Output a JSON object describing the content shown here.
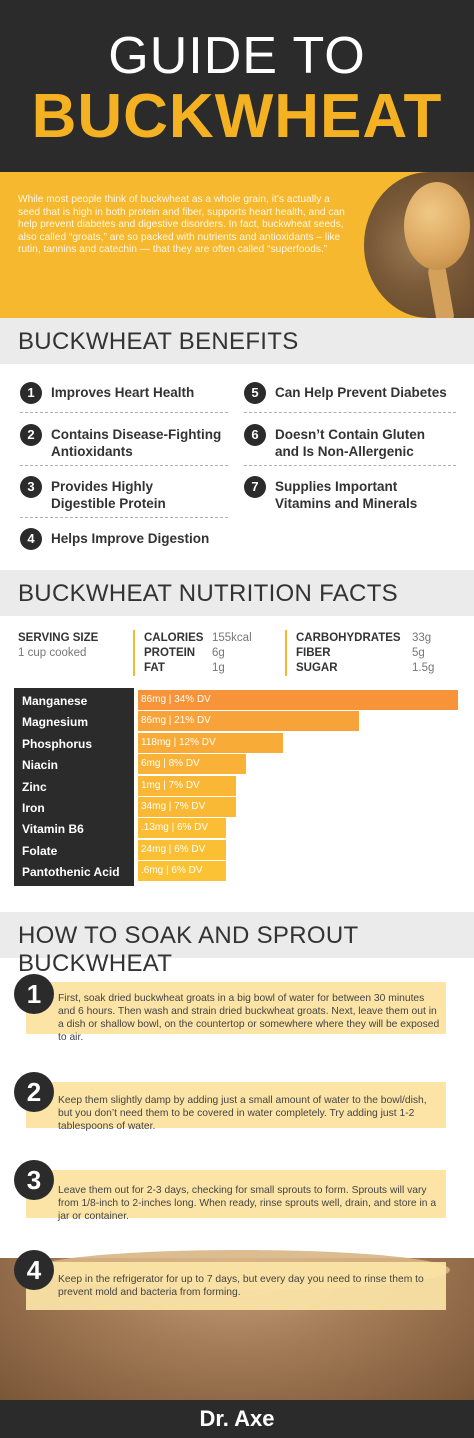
{
  "header": {
    "line1": "GUIDE TO",
    "line2": "BUCKWHEAT"
  },
  "intro": {
    "text": "While most people think of buckwheat as a whole grain, it’s actually a seed that is high in both protein and fiber, supports heart health, and can help prevent diabetes and digestive disorders. In fact, buckwheat seeds, also called “groats,” are so packed with nutrients and antioxidants – like rutin, tannins and catechin — that they are often called “superfoods.”"
  },
  "benefits": {
    "heading": "BUCKWHEAT BENEFITS",
    "items": [
      {
        "num": "1",
        "label": "Improves Heart Health"
      },
      {
        "num": "2",
        "label": "Contains Disease-Fighting Antioxidants"
      },
      {
        "num": "3",
        "label": "Provides Highly Digestible Protein"
      },
      {
        "num": "4",
        "label": "Helps Improve Digestion"
      },
      {
        "num": "5",
        "label": "Can Help Prevent Diabetes"
      },
      {
        "num": "6",
        "label": "Doesn’t Contain Gluten and Is Non-Allergenic"
      },
      {
        "num": "7",
        "label": "Supplies Important Vitamins and Minerals"
      }
    ]
  },
  "nutrition": {
    "heading": "BUCKWHEAT NUTRITION FACTS",
    "serving_label": "SERVING SIZE",
    "serving_value": "1 cup cooked",
    "facts": [
      {
        "label": "CALORIES",
        "value": "155kcal"
      },
      {
        "label": "PROTEIN",
        "value": "6g"
      },
      {
        "label": "FAT",
        "value": "1g"
      },
      {
        "label": "CARBOHYDRATES",
        "value": "33g"
      },
      {
        "label": "FIBER",
        "value": "5g"
      },
      {
        "label": "SUGAR",
        "value": "1.5g"
      }
    ]
  },
  "chart_data": {
    "type": "bar",
    "categories": [
      "Manganese",
      "Magnesium",
      "Phosphorus",
      "Niacin",
      "Zinc",
      "Iron",
      "Vitamin B6",
      "Folate",
      "Pantothenic Acid"
    ],
    "labels": [
      "86mg | 34% DV",
      "86mg | 21% DV",
      "118mg | 12% DV",
      "6mg | 8% DV",
      "1mg | 7% DV",
      "34mg | 7% DV",
      ".13mg | 6% DV",
      "24mg | 6% DV",
      ".6mg | 6% DV"
    ],
    "values": [
      34,
      21,
      12,
      8,
      7,
      7,
      6,
      6,
      6
    ],
    "colors": [
      "#f7943a",
      "#f8a33a",
      "#f9ab38",
      "#f9b237",
      "#fab735",
      "#fab935",
      "#fbbd34",
      "#fbbf34",
      "#fbc234"
    ]
  },
  "sprout": {
    "heading": "HOW TO SOAK AND SPROUT BUCKWHEAT",
    "steps": [
      {
        "num": "1",
        "text": "First, soak dried buckwheat groats in a big bowl of water for between 30 minutes and 6 hours. Then wash and strain dried buckwheat groats. Next, leave them out in a dish or shallow bowl, on the countertop or somewhere where they will be exposed to air."
      },
      {
        "num": "2",
        "text": "Keep them slightly damp by adding just a small amount of water to the bowl/dish, but you don’t need them to be covered in water completely. Try adding just 1-2 tablespoons of water."
      },
      {
        "num": "3",
        "text": "Leave them out for 2-3 days, checking for small sprouts to form. Sprouts will vary from 1/8-inch to 2-inches long. When ready, rinse sprouts well, drain, and store in a jar or container."
      },
      {
        "num": "4",
        "text": "Keep in the refrigerator for up to 7 days, but every day you need to rinse them to prevent mold and bacteria from forming."
      }
    ]
  },
  "footer": {
    "brand": "Dr. Axe"
  }
}
